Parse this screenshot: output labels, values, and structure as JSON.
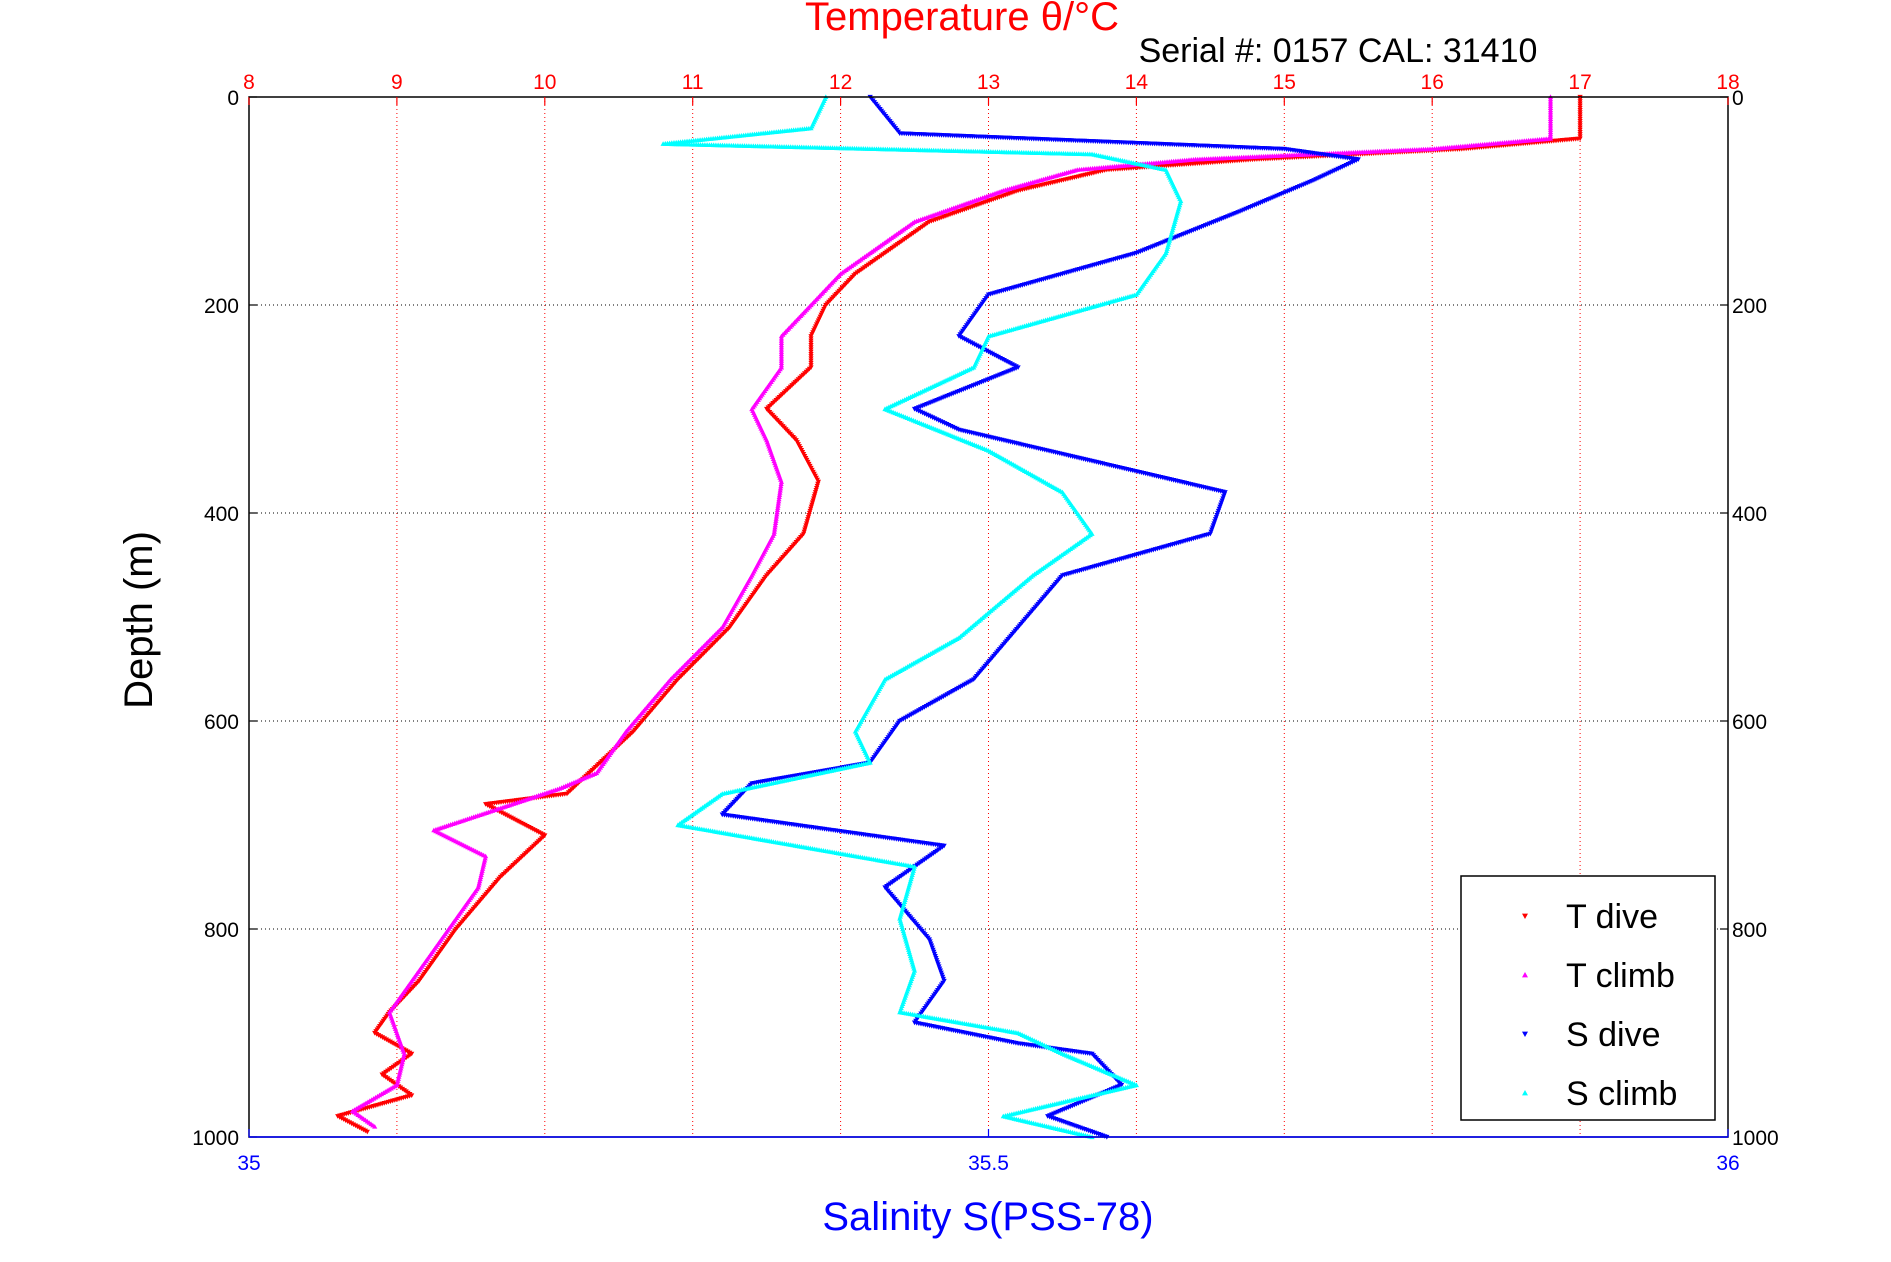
{
  "chart_data": {
    "type": "scatter",
    "title": "Temperature θ/°C",
    "subtitle": "Serial #: 0157  CAL: 31410",
    "temperature_axis": {
      "label": "Temperature θ/°C",
      "position": "top",
      "range": [
        8,
        18
      ],
      "ticks": [
        "8",
        "9",
        "10",
        "11",
        "12",
        "13",
        "14",
        "15",
        "16",
        "17",
        "18"
      ],
      "color": "#ff0000"
    },
    "salinity_axis": {
      "label": "Salinity S(PSS-78)",
      "position": "bottom",
      "range": [
        35,
        36
      ],
      "ticks": [
        "35",
        "35.5",
        "36"
      ],
      "color": "#0000ff"
    },
    "depth_axis": {
      "label": "Depth (m)",
      "range": [
        0,
        1000
      ],
      "reversed": true,
      "ticks": [
        "0",
        "200",
        "400",
        "600",
        "800",
        "1000"
      ]
    },
    "grid": true,
    "legend_position": "bottom-right",
    "series": [
      {
        "name": "T dive",
        "axis": "temperature",
        "color": "#ff0000",
        "marker": "triangle-down",
        "points": [
          [
            17,
            0
          ],
          [
            17,
            40
          ],
          [
            16.2,
            50
          ],
          [
            15.5,
            55
          ],
          [
            14.8,
            60
          ],
          [
            13.8,
            70
          ],
          [
            13.2,
            90
          ],
          [
            12.6,
            120
          ],
          [
            12.3,
            150
          ],
          [
            12.1,
            170
          ],
          [
            11.9,
            200
          ],
          [
            11.8,
            230
          ],
          [
            11.8,
            260
          ],
          [
            11.5,
            300
          ],
          [
            11.7,
            330
          ],
          [
            11.85,
            370
          ],
          [
            11.75,
            420
          ],
          [
            11.5,
            460
          ],
          [
            11.25,
            510
          ],
          [
            10.9,
            560
          ],
          [
            10.6,
            610
          ],
          [
            10.3,
            650
          ],
          [
            10.15,
            670
          ],
          [
            9.6,
            680
          ],
          [
            10.0,
            710
          ],
          [
            9.7,
            750
          ],
          [
            9.4,
            800
          ],
          [
            9.15,
            850
          ],
          [
            8.95,
            880
          ],
          [
            8.85,
            900
          ],
          [
            9.1,
            920
          ],
          [
            8.9,
            940
          ],
          [
            9.1,
            960
          ],
          [
            8.6,
            980
          ],
          [
            8.8,
            995
          ]
        ]
      },
      {
        "name": "T climb",
        "axis": "temperature",
        "color": "#ff00ff",
        "marker": "triangle-up",
        "points": [
          [
            16.8,
            0
          ],
          [
            16.8,
            40
          ],
          [
            16.0,
            50
          ],
          [
            15.2,
            55
          ],
          [
            14.4,
            60
          ],
          [
            13.6,
            70
          ],
          [
            13.1,
            90
          ],
          [
            12.5,
            120
          ],
          [
            12.2,
            150
          ],
          [
            12.0,
            170
          ],
          [
            11.8,
            200
          ],
          [
            11.6,
            230
          ],
          [
            11.6,
            260
          ],
          [
            11.4,
            300
          ],
          [
            11.5,
            330
          ],
          [
            11.6,
            370
          ],
          [
            11.55,
            420
          ],
          [
            11.4,
            460
          ],
          [
            11.2,
            510
          ],
          [
            10.85,
            560
          ],
          [
            10.55,
            610
          ],
          [
            10.35,
            650
          ],
          [
            10.1,
            665
          ],
          [
            9.25,
            705
          ],
          [
            9.6,
            730
          ],
          [
            9.55,
            760
          ],
          [
            9.3,
            810
          ],
          [
            9.1,
            850
          ],
          [
            8.95,
            880
          ],
          [
            9.05,
            920
          ],
          [
            9.0,
            950
          ],
          [
            8.7,
            975
          ],
          [
            8.85,
            990
          ]
        ]
      },
      {
        "name": "S dive",
        "axis": "salinity",
        "color": "#0000ff",
        "marker": "triangle-down",
        "points": [
          [
            35.42,
            0
          ],
          [
            35.44,
            35
          ],
          [
            35.7,
            50
          ],
          [
            35.75,
            60
          ],
          [
            35.72,
            80
          ],
          [
            35.67,
            110
          ],
          [
            35.6,
            150
          ],
          [
            35.5,
            190
          ],
          [
            35.48,
            230
          ],
          [
            35.52,
            260
          ],
          [
            35.45,
            300
          ],
          [
            35.48,
            320
          ],
          [
            35.57,
            350
          ],
          [
            35.66,
            380
          ],
          [
            35.65,
            420
          ],
          [
            35.55,
            460
          ],
          [
            35.52,
            510
          ],
          [
            35.49,
            560
          ],
          [
            35.44,
            600
          ],
          [
            35.42,
            640
          ],
          [
            35.34,
            660
          ],
          [
            35.32,
            690
          ],
          [
            35.47,
            720
          ],
          [
            35.43,
            760
          ],
          [
            35.46,
            810
          ],
          [
            35.47,
            850
          ],
          [
            35.45,
            890
          ],
          [
            35.52,
            910
          ],
          [
            35.57,
            920
          ],
          [
            35.59,
            950
          ],
          [
            35.54,
            980
          ],
          [
            35.58,
            1000
          ]
        ]
      },
      {
        "name": "S climb",
        "axis": "salinity",
        "color": "#00ffff",
        "marker": "triangle-up",
        "points": [
          [
            35.39,
            0
          ],
          [
            35.38,
            30
          ],
          [
            35.28,
            45
          ],
          [
            35.57,
            55
          ],
          [
            35.62,
            70
          ],
          [
            35.63,
            100
          ],
          [
            35.62,
            150
          ],
          [
            35.6,
            190
          ],
          [
            35.5,
            230
          ],
          [
            35.49,
            260
          ],
          [
            35.43,
            300
          ],
          [
            35.5,
            340
          ],
          [
            35.55,
            380
          ],
          [
            35.57,
            420
          ],
          [
            35.53,
            460
          ],
          [
            35.48,
            520
          ],
          [
            35.43,
            560
          ],
          [
            35.41,
            610
          ],
          [
            35.42,
            640
          ],
          [
            35.32,
            670
          ],
          [
            35.29,
            700
          ],
          [
            35.45,
            740
          ],
          [
            35.44,
            790
          ],
          [
            35.45,
            840
          ],
          [
            35.44,
            880
          ],
          [
            35.52,
            900
          ],
          [
            35.55,
            920
          ],
          [
            35.6,
            950
          ],
          [
            35.51,
            980
          ],
          [
            35.57,
            1000
          ]
        ]
      }
    ]
  },
  "legend": {
    "items": [
      "T dive",
      "T climb",
      "S dive",
      "S climb"
    ]
  }
}
